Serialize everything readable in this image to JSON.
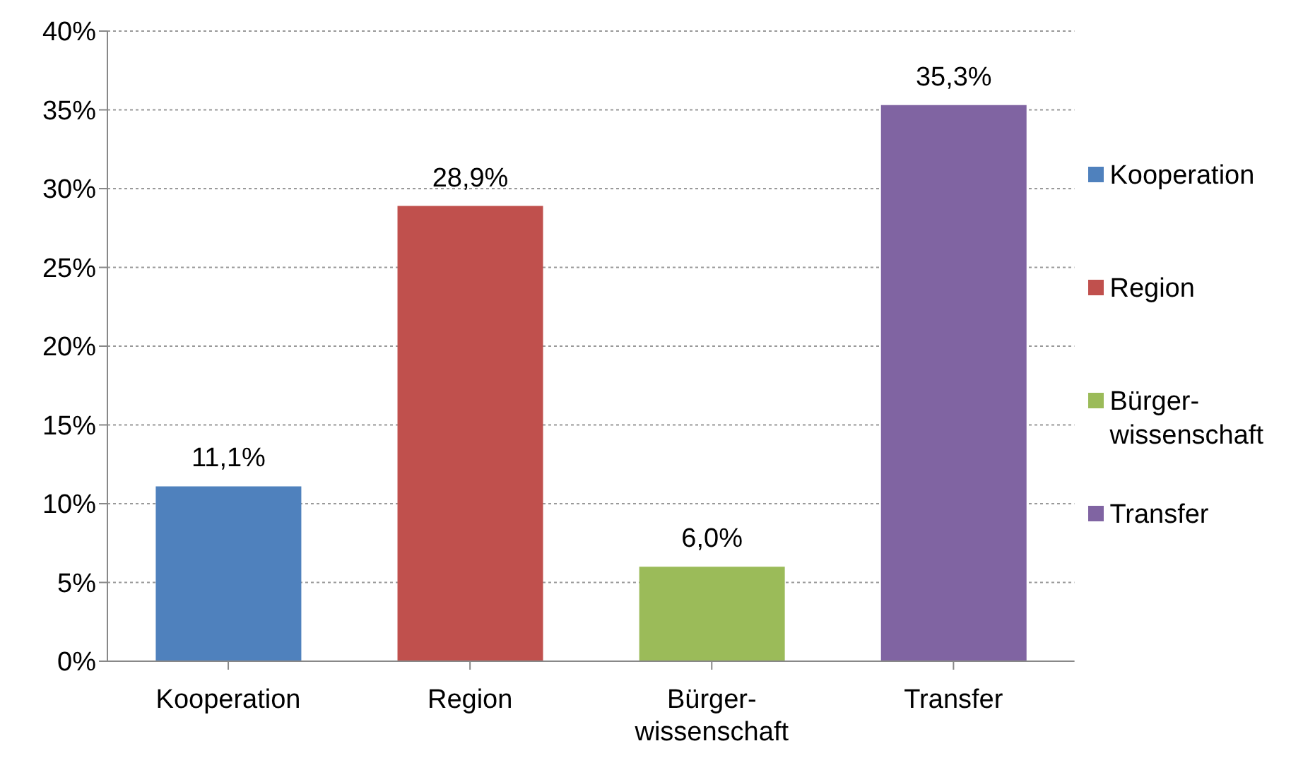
{
  "chart_data": {
    "type": "bar",
    "categories": [
      "Kooperation",
      "Region",
      "Bürger-\nwissenschaft",
      "Transfer"
    ],
    "series": [
      {
        "name": "Kooperation",
        "color": "#4f81bd",
        "values": [
          11.1,
          null,
          null,
          null
        ],
        "value_labels": [
          "11,1%",
          null,
          null,
          null
        ]
      },
      {
        "name": "Region",
        "color": "#c0504d",
        "values": [
          null,
          28.9,
          null,
          null
        ],
        "value_labels": [
          null,
          "28,9%",
          null,
          null
        ]
      },
      {
        "name": "Bürger-\nwissenschaft",
        "color": "#9bbb59",
        "values": [
          null,
          null,
          6.0,
          null
        ],
        "value_labels": [
          null,
          null,
          "6,0%",
          null
        ]
      },
      {
        "name": "Transfer",
        "color": "#8064a2",
        "values": [
          null,
          null,
          null,
          35.3
        ],
        "value_labels": [
          null,
          null,
          null,
          "35,3%"
        ]
      }
    ],
    "ylim": [
      0,
      40
    ],
    "yticks": [
      {
        "value": 0,
        "label": "0%"
      },
      {
        "value": 5,
        "label": "5%"
      },
      {
        "value": 10,
        "label": "10%"
      },
      {
        "value": 15,
        "label": "15%"
      },
      {
        "value": 20,
        "label": "20%"
      },
      {
        "value": 25,
        "label": "25%"
      },
      {
        "value": 30,
        "label": "30%"
      },
      {
        "value": 35,
        "label": "35%"
      },
      {
        "value": 40,
        "label": "40%"
      }
    ],
    "grid": "y",
    "legend": "right"
  }
}
